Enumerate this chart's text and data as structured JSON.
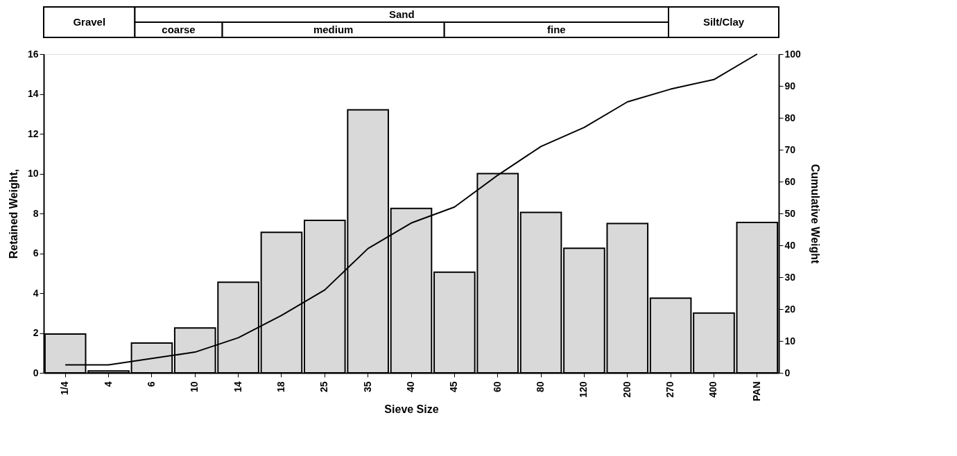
{
  "chart_data": {
    "type": "bar",
    "xlabel": "Sieve Size",
    "ylabel": "Retained Weight,",
    "y2label": "Cumulative Weight",
    "annotations": [
      "Gravel",
      "Sand",
      "coarse",
      "medium",
      "fine",
      "Silt/Clay"
    ],
    "categories": [
      "1/4",
      "4",
      "6",
      "10",
      "14",
      "18",
      "25",
      "35",
      "40",
      "45",
      "60",
      "80",
      "120",
      "200",
      "270",
      "400",
      "PAN"
    ],
    "series": [
      {
        "color": "#d9d9d9",
        "values": [
          1.95,
          0.1,
          1.5,
          2.25,
          4.55,
          7.05,
          7.65,
          13.2,
          8.25,
          5.05,
          10.0,
          8.05,
          6.25,
          7.5,
          3.75,
          3.0,
          7.55
        ]
      },
      {
        "type": "line",
        "axis": "y2",
        "color": "#000000",
        "values": [
          2.5,
          2.5,
          4.5,
          6.5,
          11,
          18,
          26,
          39,
          47,
          52,
          62,
          71,
          77,
          85,
          89,
          92,
          100
        ]
      }
    ],
    "ylim": [
      0,
      16
    ],
    "yticks": [
      0,
      2,
      4,
      6,
      8,
      10,
      12,
      14,
      16
    ],
    "y2lim": [
      0,
      100
    ],
    "y2ticks": [
      0,
      10,
      20,
      30,
      40,
      50,
      60,
      70,
      80,
      90,
      100
    ],
    "grid": false,
    "line_style": "solid",
    "marker": "none"
  }
}
